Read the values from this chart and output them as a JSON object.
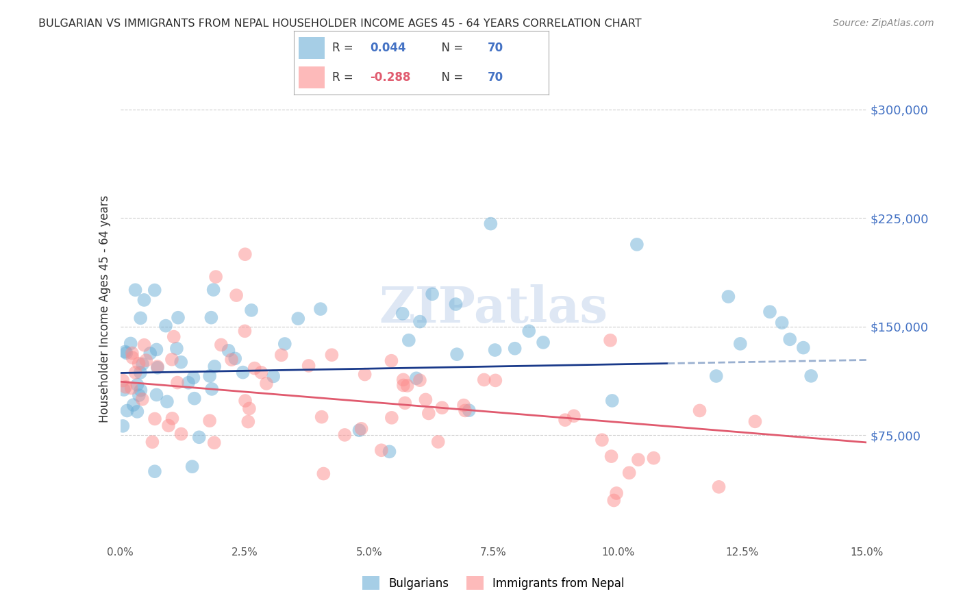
{
  "title": "BULGARIAN VS IMMIGRANTS FROM NEPAL HOUSEHOLDER INCOME AGES 45 - 64 YEARS CORRELATION CHART",
  "source": "Source: ZipAtlas.com",
  "ylabel": "Householder Income Ages 45 - 64 years",
  "xlim": [
    0.0,
    15.0
  ],
  "ylim": [
    0,
    325000
  ],
  "xtick_positions": [
    0.0,
    2.5,
    5.0,
    7.5,
    10.0,
    12.5,
    15.0
  ],
  "xtick_labels": [
    "0.0%",
    "2.5%",
    "5.0%",
    "7.5%",
    "10.0%",
    "12.5%",
    "15.0%"
  ],
  "ytick_positions": [
    75000,
    150000,
    225000,
    300000
  ],
  "ytick_labels": [
    "$75,000",
    "$150,000",
    "$225,000",
    "$300,000"
  ],
  "watermark": "ZIPatlas",
  "legend_blue_r": "0.044",
  "legend_blue_n": "70",
  "legend_pink_r": "-0.288",
  "legend_pink_n": "70",
  "legend_label_blue": "Bulgarians",
  "legend_label_pink": "Immigrants from Nepal",
  "blue_color": "#6baed6",
  "pink_color": "#fc8d8d",
  "trend_blue_color": "#1a3a8a",
  "trend_pink_color": "#e05a6e",
  "trend_blue_dash_color": "#9ab0d0",
  "title_color": "#2d2d2d",
  "ytick_color": "#4472c4",
  "background_color": "#ffffff",
  "grid_color": "#cccccc",
  "blue_trend_slope": 600,
  "blue_trend_intercept": 118000,
  "blue_trend_solid_end": 11.0,
  "pink_trend_slope": -2800,
  "pink_trend_intercept": 112000
}
